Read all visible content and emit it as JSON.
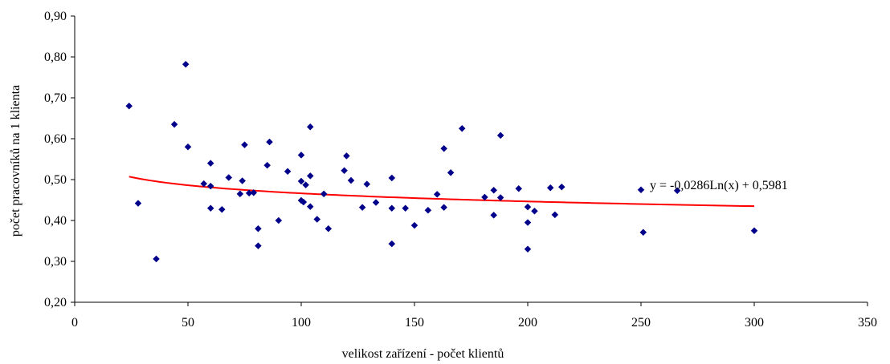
{
  "chart_data": {
    "type": "scatter",
    "title": "",
    "xlabel": "velikost zařízení - počet klientů",
    "ylabel": "počet pracovníků na 1 klienta",
    "xlim": [
      0,
      350
    ],
    "ylim": [
      0.2,
      0.9
    ],
    "x_ticks": [
      0,
      50,
      100,
      150,
      200,
      250,
      300,
      350
    ],
    "x_tick_labels": [
      "0",
      "50",
      "100",
      "150",
      "200",
      "250",
      "300",
      "350"
    ],
    "y_ticks": [
      0.2,
      0.3,
      0.4,
      0.5,
      0.6,
      0.7,
      0.8,
      0.9
    ],
    "y_tick_labels": [
      "0,20",
      "0,30",
      "0,40",
      "0,50",
      "0,60",
      "0,70",
      "0,80",
      "0,90"
    ],
    "grid": false,
    "legend": false,
    "marker_color": "#00008b",
    "trendline": {
      "type": "logarithmic",
      "a": -0.0286,
      "b": 0.5981,
      "x_range": [
        24,
        300
      ],
      "color": "#ff0000",
      "equation_label": "y = -0,0286Ln(x) + 0,5981"
    },
    "points": [
      [
        24,
        0.68
      ],
      [
        28,
        0.442
      ],
      [
        36,
        0.306
      ],
      [
        44,
        0.635
      ],
      [
        49,
        0.782
      ],
      [
        50,
        0.58
      ],
      [
        57,
        0.49
      ],
      [
        60,
        0.54
      ],
      [
        60,
        0.484
      ],
      [
        60,
        0.43
      ],
      [
        65,
        0.427
      ],
      [
        68,
        0.505
      ],
      [
        73,
        0.465
      ],
      [
        74,
        0.497
      ],
      [
        75,
        0.585
      ],
      [
        77,
        0.467
      ],
      [
        79,
        0.468
      ],
      [
        81,
        0.38
      ],
      [
        81,
        0.338
      ],
      [
        85,
        0.535
      ],
      [
        86,
        0.592
      ],
      [
        90,
        0.4
      ],
      [
        94,
        0.52
      ],
      [
        100,
        0.56
      ],
      [
        100,
        0.496
      ],
      [
        100,
        0.449
      ],
      [
        101,
        0.445
      ],
      [
        102,
        0.487
      ],
      [
        104,
        0.629
      ],
      [
        104,
        0.509
      ],
      [
        104,
        0.434
      ],
      [
        107,
        0.403
      ],
      [
        110,
        0.465
      ],
      [
        112,
        0.38
      ],
      [
        119,
        0.522
      ],
      [
        120,
        0.558
      ],
      [
        122,
        0.498
      ],
      [
        127,
        0.432
      ],
      [
        129,
        0.489
      ],
      [
        133,
        0.444
      ],
      [
        140,
        0.504
      ],
      [
        140,
        0.43
      ],
      [
        140,
        0.343
      ],
      [
        146,
        0.43
      ],
      [
        150,
        0.388
      ],
      [
        156,
        0.425
      ],
      [
        160,
        0.464
      ],
      [
        163,
        0.576
      ],
      [
        163,
        0.432
      ],
      [
        166,
        0.517
      ],
      [
        171,
        0.625
      ],
      [
        181,
        0.457
      ],
      [
        185,
        0.474
      ],
      [
        185,
        0.413
      ],
      [
        188,
        0.608
      ],
      [
        188,
        0.456
      ],
      [
        196,
        0.478
      ],
      [
        200,
        0.433
      ],
      [
        200,
        0.395
      ],
      [
        200,
        0.33
      ],
      [
        203,
        0.423
      ],
      [
        210,
        0.48
      ],
      [
        212,
        0.414
      ],
      [
        215,
        0.482
      ],
      [
        250,
        0.475
      ],
      [
        251,
        0.371
      ],
      [
        266,
        0.473
      ],
      [
        300,
        0.375
      ]
    ]
  }
}
